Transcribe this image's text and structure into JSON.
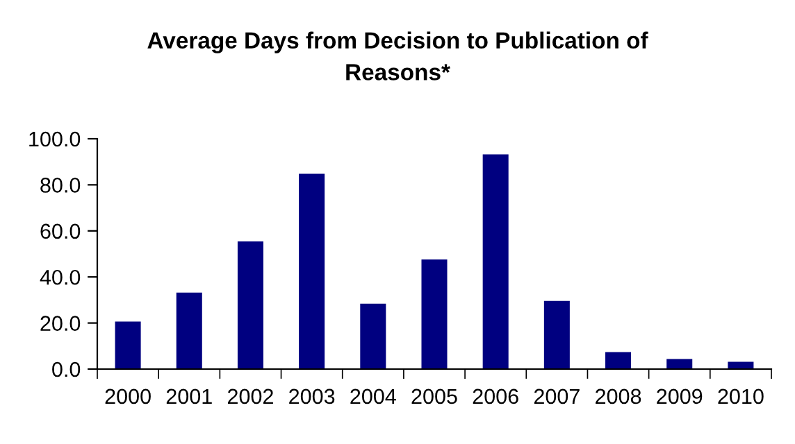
{
  "chart_data": {
    "type": "bar",
    "title": "Average Days from Decision to Publication of\nReasons*",
    "categories": [
      "2000",
      "2001",
      "2002",
      "2003",
      "2004",
      "2005",
      "2006",
      "2007",
      "2008",
      "2009",
      "2010"
    ],
    "values": [
      20.6,
      33.2,
      55.4,
      84.8,
      28.4,
      47.6,
      93.2,
      29.6,
      7.4,
      4.4,
      3.2
    ],
    "color": "#000080",
    "ylim": [
      0,
      100
    ],
    "yticks": [
      {
        "value": 0,
        "label": "0.0"
      },
      {
        "value": 20,
        "label": "20.0"
      },
      {
        "value": 40,
        "label": "40.0"
      },
      {
        "value": 60,
        "label": "60.0"
      },
      {
        "value": 80,
        "label": "80.0"
      },
      {
        "value": 100,
        "label": "100.0"
      }
    ],
    "grid": false,
    "legend": false
  }
}
